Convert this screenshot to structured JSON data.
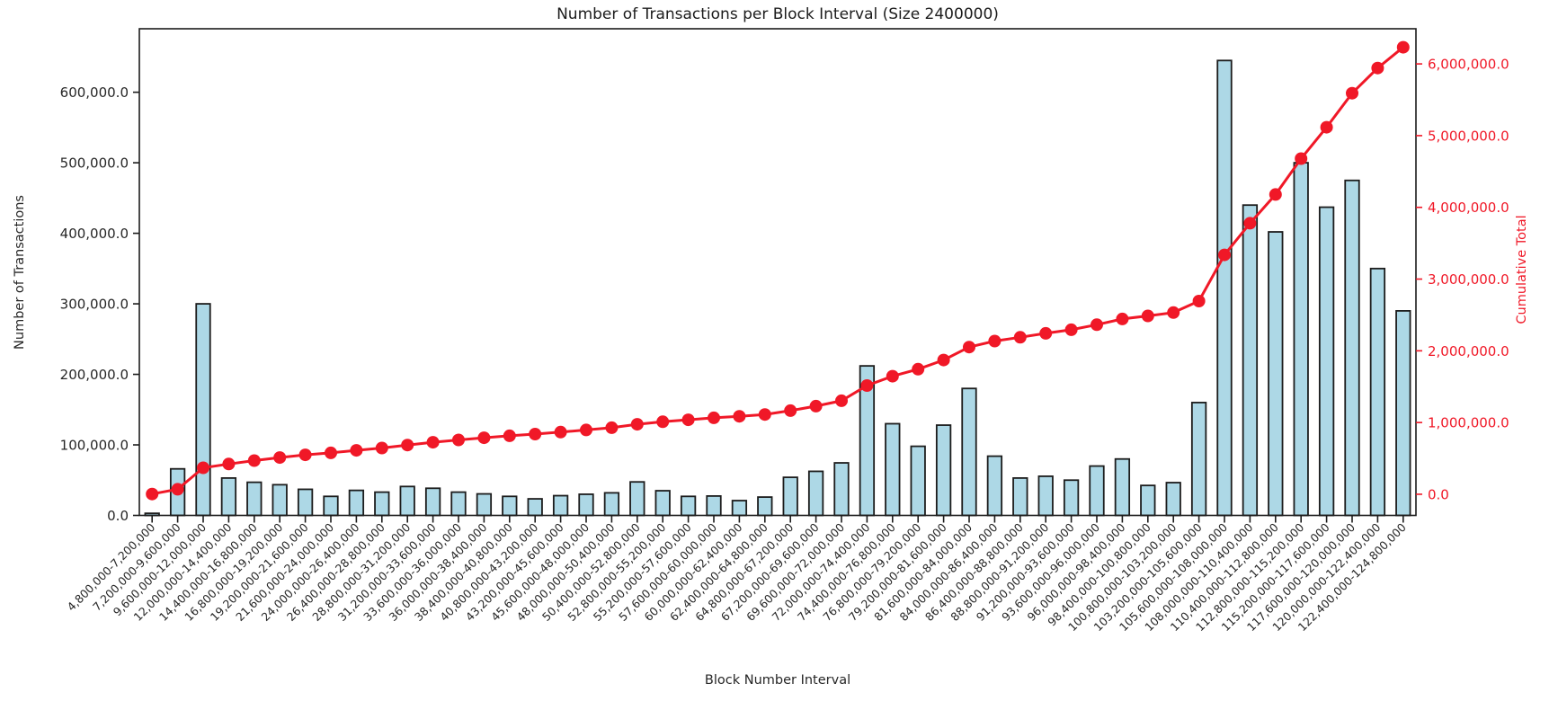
{
  "figure": {
    "title": "Number of Transactions per Block Interval (Size 2400000)",
    "xlabel": "Block Number Interval",
    "ylabel_left": "Number of Transactions",
    "ylabel_right": "Cumulative Total",
    "colors": {
      "background": "#ffffff",
      "bar_fill": "#add8e6",
      "bar_edge": "#1c1c1c",
      "line": "#f01827",
      "right_axis_text": "#f01827",
      "left_axis_text": "#262626",
      "spine": "#1c1c1c"
    }
  },
  "chart_data": {
    "type": "bar",
    "title": "Number of Transactions per Block Interval (Size 2400000)",
    "xlabel": "Block Number Interval",
    "ylabel": "Number of Transactions",
    "ylabel_right": "Cumulative Total",
    "grid": false,
    "legend": "none",
    "categories": [
      "4,800,000-7,200,000",
      "7,200,000-9,600,000",
      "9,600,000-12,000,000",
      "12,000,000-14,400,000",
      "14,400,000-16,800,000",
      "16,800,000-19,200,000",
      "19,200,000-21,600,000",
      "21,600,000-24,000,000",
      "24,000,000-26,400,000",
      "26,400,000-28,800,000",
      "28,800,000-31,200,000",
      "31,200,000-33,600,000",
      "33,600,000-36,000,000",
      "36,000,000-38,400,000",
      "38,400,000-40,800,000",
      "40,800,000-43,200,000",
      "43,200,000-45,600,000",
      "45,600,000-48,000,000",
      "48,000,000-50,400,000",
      "50,400,000-52,800,000",
      "52,800,000-55,200,000",
      "55,200,000-57,600,000",
      "57,600,000-60,000,000",
      "60,000,000-62,400,000",
      "62,400,000-64,800,000",
      "64,800,000-67,200,000",
      "67,200,000-69,600,000",
      "69,600,000-72,000,000",
      "72,000,000-74,400,000",
      "74,400,000-76,800,000",
      "76,800,000-79,200,000",
      "79,200,000-81,600,000",
      "81,600,000-84,000,000",
      "84,000,000-86,400,000",
      "86,400,000-88,800,000",
      "88,800,000-91,200,000",
      "91,200,000-93,600,000",
      "93,600,000-96,000,000",
      "96,000,000-98,400,000",
      "98,400,000-100,800,000",
      "100,800,000-103,200,000",
      "103,200,000-105,600,000",
      "105,600,000-108,000,000",
      "108,000,000-110,400,000",
      "110,400,000-112,800,000",
      "112,800,000-115,200,000",
      "115,200,000-117,600,000",
      "117,600,000-120,000,000",
      "120,000,000-122,400,000",
      "122,400,000-124,800,000"
    ],
    "series": [
      {
        "name": "Number of Transactions",
        "type": "bar",
        "axis": "left",
        "values": [
          3000,
          66000,
          300000,
          53000,
          47000,
          43500,
          37000,
          27000,
          35500,
          33000,
          41000,
          38500,
          33000,
          30500,
          27000,
          23500,
          28000,
          30000,
          32000,
          47500,
          35000,
          27000,
          27500,
          21000,
          26000,
          54000,
          62500,
          74500,
          212000,
          130000,
          98000,
          128000,
          180000,
          84000,
          53000,
          55500,
          50000,
          70000,
          80000,
          42500,
          46500,
          160000,
          645000,
          440000,
          402000,
          500000,
          437000,
          475000,
          350000,
          290000
        ]
      },
      {
        "name": "Cumulative Total",
        "type": "line",
        "axis": "right",
        "values": [
          3000,
          69000,
          369000,
          422000,
          469000,
          512500,
          549500,
          576500,
          612000,
          645000,
          686000,
          724500,
          757500,
          788000,
          815000,
          838500,
          866500,
          896500,
          928500,
          976000,
          1011000,
          1038000,
          1065500,
          1086500,
          1112500,
          1166500,
          1229000,
          1303500,
          1515500,
          1645500,
          1743500,
          1871500,
          2051500,
          2135500,
          2188500,
          2244000,
          2294000,
          2364000,
          2444000,
          2486500,
          2533000,
          2693000,
          3338000,
          3778000,
          4180000,
          4680000,
          5117000,
          5592000,
          5942000,
          6232000
        ]
      }
    ],
    "left_axis": {
      "min": 0,
      "max": 690000,
      "tick_values": [
        0,
        100000,
        200000,
        300000,
        400000,
        500000,
        600000
      ],
      "tick_labels": [
        "0.0",
        "100,000.0",
        "200,000.0",
        "300,000.0",
        "400,000.0",
        "500,000.0",
        "600,000.0"
      ]
    },
    "right_axis": {
      "min": -295000,
      "max": 6490000,
      "tick_values": [
        0,
        1000000,
        2000000,
        3000000,
        4000000,
        5000000,
        6000000
      ],
      "tick_labels": [
        "0.0",
        "1,000,000.0",
        "2,000,000.0",
        "3,000,000.0",
        "4,000,000.0",
        "5,000,000.0",
        "6,000,000.0"
      ]
    }
  }
}
